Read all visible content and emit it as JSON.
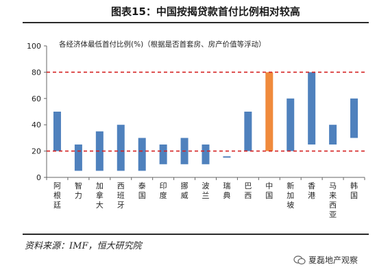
{
  "header": {
    "title": "图表15：中国按揭贷款首付比例相对较高"
  },
  "footer": {
    "source": "资料来源：IMF，恒大研究院",
    "watermark": "夏磊地产观察"
  },
  "colors": {
    "bar_default": "#4f81bd",
    "bar_highlight": "#f08a3c",
    "ref_line": "#d42020",
    "axis": "#666666"
  },
  "chart_data": {
    "type": "bar",
    "title": "各经济体最低首付比例(%)（根据是否首套房、房产价值等浮动）",
    "xlabel": "",
    "ylabel": "",
    "ylim": [
      0,
      100
    ],
    "yticks": [
      0,
      20,
      40,
      60,
      80,
      100
    ],
    "reference_lines": [
      20,
      80
    ],
    "categories": [
      "阿根廷",
      "智力",
      "加拿大",
      "西班牙",
      "泰国",
      "印度",
      "挪威",
      "波兰",
      "瑞典",
      "巴西",
      "中国",
      "新加坡",
      "香港",
      "马来西亚",
      "韩国"
    ],
    "low": [
      20,
      5,
      5,
      5,
      5,
      10,
      10,
      10,
      15,
      20,
      20,
      20,
      25,
      25,
      30
    ],
    "high": [
      50,
      25,
      35,
      40,
      30,
      25,
      30,
      25,
      16,
      50,
      80,
      60,
      80,
      40,
      60
    ],
    "highlight": [
      "中国"
    ]
  }
}
